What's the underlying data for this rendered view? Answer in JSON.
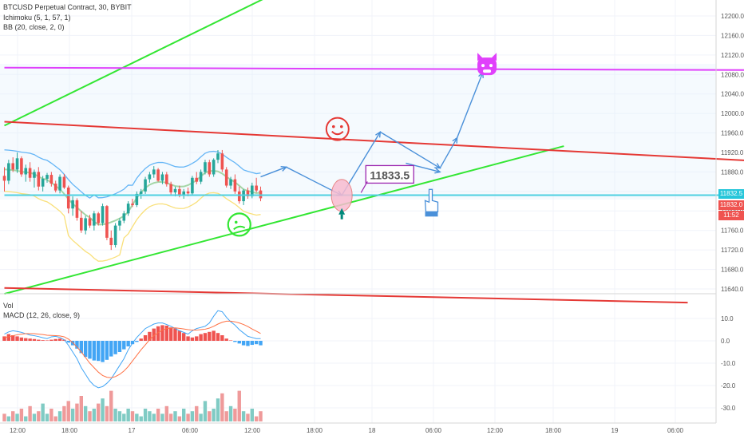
{
  "chart_data": {
    "type": "candlestick",
    "symbol_title": "BTCUSD Perpetual Contract, 30, BYBIT",
    "indicators": [
      "Ichimoku (5, 1, 57, 1)",
      "BB (20, close, 2, 0)"
    ],
    "price_axis": {
      "ticks": [
        "12200.0",
        "12160.0",
        "12120.0",
        "12080.0",
        "12040.0",
        "12000.0",
        "11960.0",
        "11920.0",
        "11880.0",
        "11840.0",
        "11800.0",
        "11760.0",
        "11720.0",
        "11680.0",
        "11640.0"
      ],
      "range": [
        11620,
        12220
      ]
    },
    "price_badges": [
      {
        "label": "11832.5",
        "value": 11832.5,
        "color": "#26c6da"
      },
      {
        "label": "11832.0",
        "value": 11822,
        "color": "#ef5350"
      },
      {
        "label": "11:52",
        "value": 11807,
        "color": "#ef5350"
      }
    ],
    "time_axis": {
      "ticks": [
        "12:00",
        "18:00",
        "17",
        "06:00",
        "12:00",
        "18:00",
        "18",
        "06:00",
        "12:00",
        "18:00",
        "19",
        "06:00"
      ]
    },
    "candles": [
      [
        11872,
        11890,
        11840,
        11862
      ],
      [
        11862,
        11905,
        11855,
        11898
      ],
      [
        11898,
        11910,
        11880,
        11885
      ],
      [
        11885,
        11920,
        11878,
        11908
      ],
      [
        11908,
        11912,
        11870,
        11875
      ],
      [
        11875,
        11895,
        11860,
        11888
      ],
      [
        11888,
        11900,
        11860,
        11868
      ],
      [
        11868,
        11885,
        11848,
        11880
      ],
      [
        11880,
        11890,
        11842,
        11850
      ],
      [
        11850,
        11872,
        11840,
        11866
      ],
      [
        11866,
        11878,
        11858,
        11874
      ],
      [
        11874,
        11880,
        11850,
        11856
      ],
      [
        11856,
        11862,
        11838,
        11842
      ],
      [
        11842,
        11875,
        11836,
        11870
      ],
      [
        11870,
        11876,
        11845,
        11848
      ],
      [
        11848,
        11852,
        11795,
        11805
      ],
      [
        11805,
        11830,
        11790,
        11822
      ],
      [
        11822,
        11826,
        11780,
        11786
      ],
      [
        11786,
        11800,
        11755,
        11760
      ],
      [
        11760,
        11790,
        11752,
        11785
      ],
      [
        11785,
        11792,
        11765,
        11770
      ],
      [
        11770,
        11800,
        11760,
        11795
      ],
      [
        11795,
        11798,
        11770,
        11775
      ],
      [
        11775,
        11815,
        11770,
        11810
      ],
      [
        11810,
        11812,
        11740,
        11745
      ],
      [
        11745,
        11760,
        11720,
        11730
      ],
      [
        11730,
        11775,
        11725,
        11770
      ],
      [
        11770,
        11785,
        11760,
        11780
      ],
      [
        11780,
        11800,
        11775,
        11795
      ],
      [
        11795,
        11820,
        11790,
        11815
      ],
      [
        11815,
        11825,
        11808,
        11812
      ],
      [
        11812,
        11840,
        11808,
        11835
      ],
      [
        11835,
        11845,
        11825,
        11840
      ],
      [
        11840,
        11870,
        11835,
        11865
      ],
      [
        11865,
        11880,
        11858,
        11875
      ],
      [
        11875,
        11892,
        11868,
        11885
      ],
      [
        11885,
        11888,
        11860,
        11862
      ],
      [
        11862,
        11880,
        11855,
        11875
      ],
      [
        11875,
        11880,
        11850,
        11855
      ],
      [
        11855,
        11860,
        11832,
        11838
      ],
      [
        11838,
        11850,
        11830,
        11845
      ],
      [
        11845,
        11852,
        11828,
        11832
      ],
      [
        11832,
        11845,
        11825,
        11840
      ],
      [
        11840,
        11848,
        11830,
        11836
      ],
      [
        11836,
        11872,
        11832,
        11868
      ],
      [
        11868,
        11880,
        11855,
        11860
      ],
      [
        11860,
        11885,
        11855,
        11880
      ],
      [
        11880,
        11905,
        11875,
        11900
      ],
      [
        11900,
        11905,
        11870,
        11875
      ],
      [
        11875,
        11908,
        11870,
        11905
      ],
      [
        11905,
        11925,
        11898,
        11918
      ],
      [
        11918,
        11925,
        11880,
        11885
      ],
      [
        11885,
        11890,
        11848,
        11852
      ],
      [
        11852,
        11870,
        11845,
        11865
      ],
      [
        11865,
        11875,
        11835,
        11840
      ],
      [
        11840,
        11850,
        11815,
        11820
      ],
      [
        11820,
        11845,
        11812,
        11842
      ],
      [
        11842,
        11848,
        11825,
        11830
      ],
      [
        11830,
        11858,
        11826,
        11852
      ],
      [
        11852,
        11868,
        11838,
        11842
      ],
      [
        11842,
        11850,
        11820,
        11826
      ]
    ],
    "trend_lines": [
      {
        "name": "upper green channel",
        "color": "#33e633",
        "from": [
          0,
          11975
        ],
        "to": [
          63,
          12245
        ]
      },
      {
        "name": "lower green support",
        "color": "#33e633",
        "from": [
          0,
          11630
        ],
        "to": [
          131,
          11933
        ]
      },
      {
        "name": "red channel top",
        "color": "#e53935",
        "from": [
          0,
          11983
        ],
        "to": [
          175,
          11903
        ]
      },
      {
        "name": "red channel bottom",
        "color": "#e53935",
        "from": [
          0,
          11642
        ],
        "to": [
          160,
          11612
        ]
      },
      {
        "name": "magenta resistance",
        "color": "#e040fb",
        "from": [
          0,
          12094
        ],
        "to": [
          175,
          12089
        ]
      },
      {
        "name": "cyan current price",
        "color": "#4dd0e1",
        "from": [
          0,
          11832.5
        ],
        "to": [
          175,
          11832.5
        ]
      }
    ],
    "projection_path": [
      [
        60,
        11870
      ],
      [
        66,
        11890
      ],
      [
        79,
        11832
      ],
      [
        88,
        11962
      ],
      [
        102,
        11888
      ],
      [
        106,
        11950
      ],
      [
        112,
        12084
      ]
    ],
    "projection_side_path": [
      [
        94,
        11898
      ],
      [
        102,
        11880
      ]
    ],
    "annotations": [
      {
        "type": "price_label",
        "text": "11833.5",
        "color": "#9c27b0"
      }
    ],
    "volume_macd": {
      "labels": [
        "Vol",
        "MACD (12, 26, close, 9)"
      ],
      "ticks": [
        "10.0",
        "0.0",
        "-10.0",
        "-20.0",
        "-30.0"
      ],
      "range": [
        -35,
        16
      ],
      "histogram": [
        2,
        3,
        2.5,
        2,
        1.5,
        1.2,
        1,
        0.8,
        0.5,
        0.3,
        0.2,
        0.5,
        0.8,
        1,
        0.5,
        -0.8,
        -2,
        -3.5,
        -5.5,
        -7.2,
        -8,
        -8.8,
        -9,
        -9.5,
        -8.5,
        -7,
        -6,
        -5,
        -3.8,
        -2.5,
        -1.5,
        -0.5,
        1,
        2.5,
        4,
        5.5,
        6.5,
        7,
        6.8,
        6,
        5.5,
        4.5,
        3.5,
        2,
        1.5,
        2,
        3,
        3.5,
        4,
        4.5,
        3.5,
        2.5,
        1,
        0.2,
        -0.5,
        -1.2,
        -2,
        -2.3,
        -1.8,
        -1.5,
        -2
      ],
      "macd": [
        3,
        4,
        4.5,
        4.2,
        3.8,
        3.2,
        2.6,
        2.3,
        1.9,
        1.4,
        1,
        1.8,
        2,
        1.5,
        0.5,
        -2,
        -5,
        -8,
        -12,
        -15,
        -18,
        -20,
        -21,
        -20.5,
        -19,
        -17,
        -14,
        -11,
        -8,
        -4,
        -1,
        1.5,
        3.5,
        5.5,
        6.5,
        7.5,
        8,
        8,
        7.3,
        6.5,
        5.5,
        4.5,
        3.8,
        3,
        4.5,
        5.5,
        6,
        6.5,
        8,
        11,
        13.5,
        13,
        10.5,
        8.5,
        7,
        5,
        3.5,
        2,
        1.5,
        1,
        1
      ],
      "signal": [
        1.5,
        1.8,
        2.3,
        2.7,
        3,
        3.2,
        3.2,
        3.2,
        3,
        2.8,
        2.5,
        2.4,
        2.3,
        2.2,
        1.8,
        0.8,
        -0.8,
        -2.8,
        -5,
        -7.5,
        -10,
        -12,
        -14,
        -15.5,
        -16.3,
        -16.5,
        -16,
        -15,
        -13.5,
        -11.5,
        -9,
        -6.5,
        -4,
        -1.8,
        0.5,
        2.3,
        3.7,
        4.8,
        5.5,
        5.7,
        5.8,
        5.6,
        5.3,
        5,
        4.8,
        4.8,
        5,
        5.2,
        5.7,
        6.5,
        7.5,
        8.3,
        8.8,
        8.8,
        8.5,
        8,
        7.3,
        6.4,
        5.3,
        4.3,
        3.3
      ],
      "volume": [
        3,
        2,
        4,
        3,
        5,
        2,
        6,
        3,
        4,
        7,
        3,
        5,
        2,
        4,
        6,
        8,
        5,
        7,
        10,
        6,
        4,
        5,
        7,
        9,
        6,
        12,
        5,
        4,
        3,
        5,
        4,
        3,
        2,
        5,
        4,
        3,
        5,
        3,
        6,
        3,
        4,
        2,
        5,
        3,
        4,
        6,
        3,
        8,
        4,
        5,
        9,
        11,
        4,
        6,
        5,
        12,
        4,
        3,
        5,
        2,
        4
      ]
    }
  }
}
